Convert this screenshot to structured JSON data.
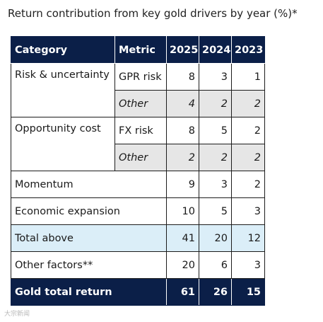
{
  "title": "Return contribution from key gold drivers by year (%)*",
  "table": {
    "headers": [
      "Category",
      "Metric",
      "2025",
      "2024",
      "2023"
    ],
    "risk": {
      "category": "Risk & uncertainty",
      "rows": [
        {
          "metric": "GPR risk",
          "values": [
            "8",
            "3",
            "1"
          ]
        },
        {
          "metric": "Other",
          "values": [
            "4",
            "2",
            "2"
          ]
        }
      ]
    },
    "opportunity": {
      "category": "Opportunity cost",
      "rows": [
        {
          "metric": "FX risk",
          "values": [
            "8",
            "5",
            "2"
          ]
        },
        {
          "metric": "Other",
          "values": [
            "2",
            "2",
            "2"
          ]
        }
      ]
    },
    "momentum": {
      "label": "Momentum",
      "values": [
        "9",
        "3",
        "2"
      ]
    },
    "economic": {
      "label": "Economic expansion",
      "values": [
        "10",
        "5",
        "3"
      ]
    },
    "total_above": {
      "label": "Total above",
      "values": [
        "41",
        "20",
        "12"
      ]
    },
    "other_factors": {
      "label": "Other factors**",
      "values": [
        "20",
        "6",
        "3"
      ]
    },
    "gold_total": {
      "label": "Gold total return",
      "values": [
        "61",
        "26",
        "15"
      ]
    }
  },
  "colors": {
    "header_bg": "#0b1f48",
    "highlight_row": "#dbeef8",
    "other_row": "#e6e6e6"
  },
  "watermark": "大宗新闻"
}
